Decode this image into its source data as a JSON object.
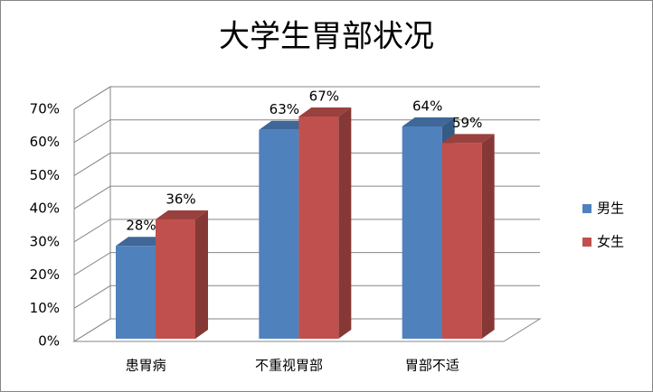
{
  "chart_data": {
    "type": "bar3d",
    "title": "大学生胃部状况",
    "categories": [
      "患胃病",
      "不重视胃部",
      "胃部不适"
    ],
    "series": [
      {
        "name": "男生",
        "color": "#4f81bd",
        "values": [
          28,
          63,
          64
        ],
        "value_labels": [
          "28%",
          "63%",
          "64%"
        ]
      },
      {
        "name": "女生",
        "color": "#c0504d",
        "values": [
          36,
          67,
          59
        ],
        "value_labels": [
          "36%",
          "67%",
          "59%"
        ]
      }
    ],
    "ylim": [
      0,
      70
    ],
    "yticks": [
      {
        "value": 0,
        "label": "0%"
      },
      {
        "value": 10,
        "label": "10%"
      },
      {
        "value": 20,
        "label": "20%"
      },
      {
        "value": 30,
        "label": "30%"
      },
      {
        "value": 40,
        "label": "40%"
      },
      {
        "value": 50,
        "label": "50%"
      },
      {
        "value": 60,
        "label": "60%"
      },
      {
        "value": 70,
        "label": "70%"
      }
    ],
    "grid": true,
    "legend": "right"
  }
}
